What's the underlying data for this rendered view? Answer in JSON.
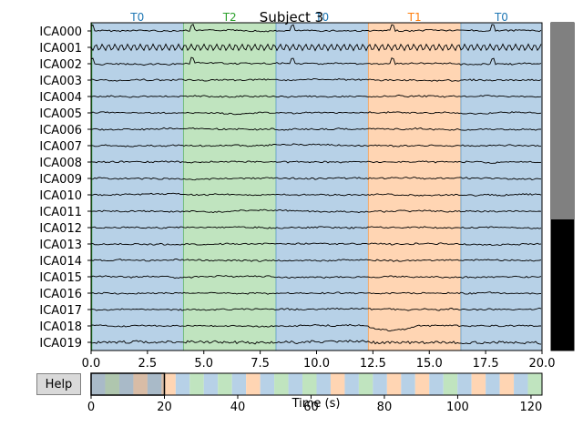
{
  "title": "Subject 3",
  "help_label": "Help",
  "xlabel": "Time (s)",
  "channels": [
    "ICA000",
    "ICA001",
    "ICA002",
    "ICA003",
    "ICA004",
    "ICA005",
    "ICA006",
    "ICA007",
    "ICA008",
    "ICA009",
    "ICA010",
    "ICA011",
    "ICA012",
    "ICA013",
    "ICA014",
    "ICA015",
    "ICA016",
    "ICA017",
    "ICA018",
    "ICA019"
  ],
  "colors": {
    "T0": "#1f77b4",
    "T1": "#ff7f0e",
    "T2": "#2ca02c",
    "T0_fill": "#b7d1e7",
    "T1_fill": "#ffd5b3",
    "T2_fill": "#c0e4bf",
    "scroll_gray": "#808080",
    "scroll_black": "#000000"
  },
  "main_view": {
    "xlim": [
      0,
      20
    ],
    "xticks": [
      "0.0",
      "2.5",
      "5.0",
      "7.5",
      "10.0",
      "12.5",
      "15.0",
      "17.5",
      "20.0"
    ],
    "annotations": [
      {
        "label": "T0",
        "start": 0.0,
        "end": 4.1
      },
      {
        "label": "T2",
        "start": 4.1,
        "end": 8.2
      },
      {
        "label": "T0",
        "start": 8.2,
        "end": 12.3
      },
      {
        "label": "T1",
        "start": 12.3,
        "end": 16.4
      },
      {
        "label": "T0",
        "start": 16.4,
        "end": 20.0
      }
    ]
  },
  "overview": {
    "xlim": [
      0,
      123
    ],
    "xticks": [
      "0",
      "20",
      "40",
      "60",
      "80",
      "100",
      "120"
    ],
    "blocks": [
      "T0",
      "T2",
      "T0",
      "T1",
      "T0",
      "T1",
      "T0",
      "T2",
      "T0",
      "T2",
      "T0",
      "T1",
      "T0",
      "T2",
      "T0",
      "T2",
      "T0",
      "T1",
      "T0",
      "T2",
      "T0",
      "T1",
      "T0",
      "T1",
      "T0",
      "T2",
      "T0",
      "T1",
      "T0",
      "T1",
      "T0",
      "T2"
    ],
    "view_window": [
      0,
      20
    ]
  },
  "vertical_scrollbar": {
    "visible_fraction": 0.6
  }
}
